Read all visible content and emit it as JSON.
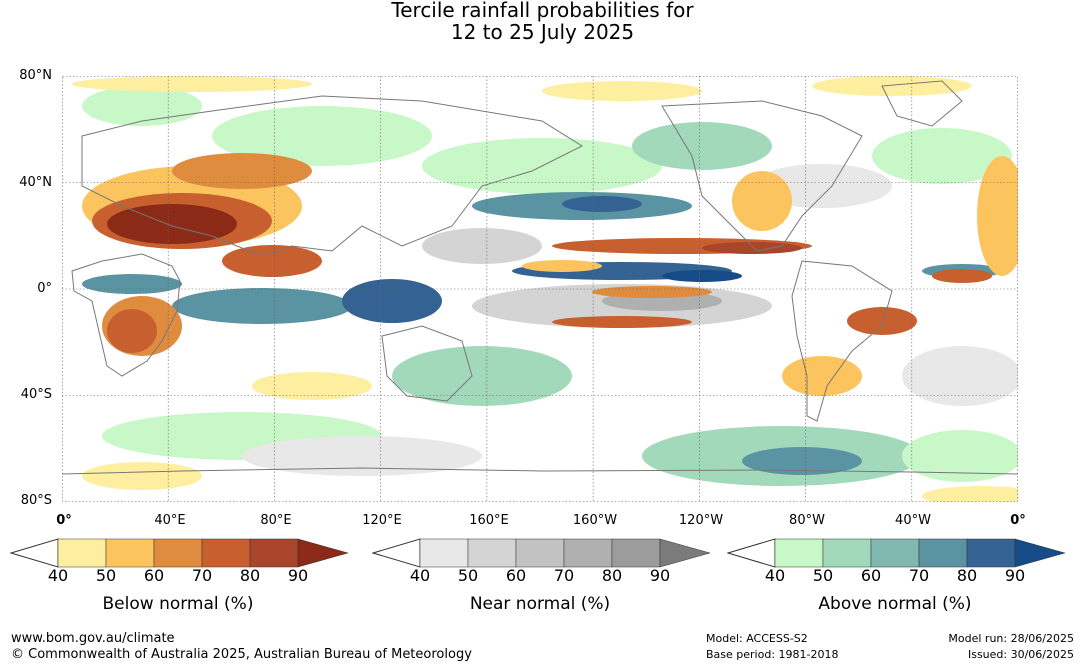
{
  "title": {
    "line1": "Tercile rainfall probabilities for",
    "line2": "12 to 25 July 2025"
  },
  "map": {
    "lat_labels": [
      "80°N",
      "40°N",
      "0°",
      "40°S",
      "80°S"
    ],
    "lon_labels": [
      "0°",
      "40°E",
      "80°E",
      "120°E",
      "160°E",
      "160°W",
      "120°W",
      "80°W",
      "40°W",
      "0°"
    ]
  },
  "legends": [
    {
      "label": "Below normal (%)",
      "ticks": [
        "40",
        "50",
        "60",
        "70",
        "80",
        "90"
      ],
      "colors": [
        "#fdeea0",
        "#fcc45f",
        "#e08c3e",
        "#c85f2e",
        "#a9452a",
        "#8b2a17"
      ]
    },
    {
      "label": "Near normal (%)",
      "ticks": [
        "40",
        "50",
        "60",
        "70",
        "80",
        "90"
      ],
      "colors": [
        "#e8e8e8",
        "#d4d4d4",
        "#c2c2c2",
        "#b0b0b0",
        "#9c9c9c",
        "#7b7b7b"
      ]
    },
    {
      "label": "Above normal (%)",
      "ticks": [
        "40",
        "50",
        "60",
        "70",
        "80",
        "90"
      ],
      "colors": [
        "#c8f8c8",
        "#a2d9bb",
        "#81b8b0",
        "#5a93a1",
        "#346393",
        "#154c87"
      ]
    }
  ],
  "footer": {
    "url": "www.bom.gov.au/climate",
    "copyright": "© Commonwealth of Australia 2025, Australian Bureau of Meteorology",
    "model": "Model: ACCESS-S2",
    "base_period": "Base period: 1981-2018",
    "model_run": "Model run: 28/06/2025",
    "issued": "Issued: 30/06/2025"
  }
}
